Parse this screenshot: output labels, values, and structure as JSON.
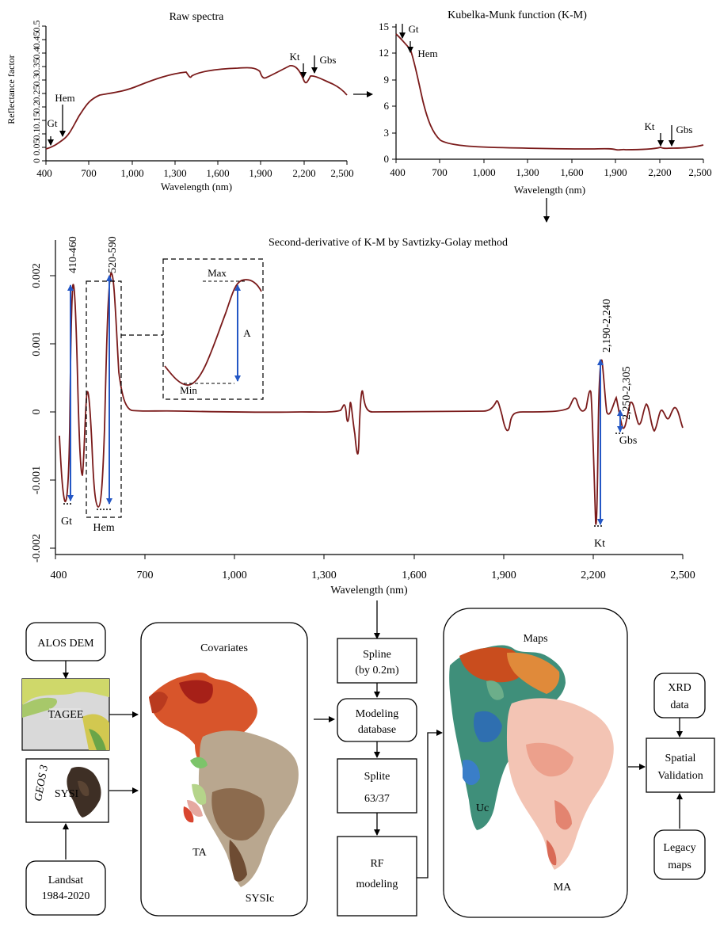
{
  "panel_raw": {
    "title": "Raw spectra",
    "ylabel": "Reflectance factor",
    "xlabel": "Wavelength (nm)",
    "yticks": [
      "0",
      "0.05",
      "0.1",
      "0.15",
      "0.2",
      "0.25",
      "0.3",
      "0.35",
      "0.4",
      "0.45",
      "0.5"
    ],
    "xticks": [
      "400",
      "700",
      "1,000",
      "1,300",
      "1,600",
      "1,900",
      "2,200",
      "2,500"
    ],
    "labels": {
      "gt": "Gt",
      "hem": "Hem",
      "kt": "Kt",
      "gbs": "Gbs"
    }
  },
  "panel_km": {
    "title": "Kubelka-Munk function (K-M)",
    "xlabel": "Wavelength (nm)",
    "yticks": [
      "0",
      "3",
      "6",
      "9",
      "12",
      "15"
    ],
    "xticks": [
      "400",
      "700",
      "1,000",
      "1,300",
      "1,600",
      "1,900",
      "2,200",
      "2,500"
    ],
    "labels": {
      "gt": "Gt",
      "hem": "Hem",
      "kt": "Kt",
      "gbs": "Gbs"
    }
  },
  "panel_deriv": {
    "title": "Second-derivative of K-M by Savtizky-Golay method",
    "xlabel": "Wavelength (nm)",
    "yticks": [
      "-0.002",
      "-0.001",
      "0",
      "0.001",
      "0.002"
    ],
    "xticks": [
      "400",
      "700",
      "1,000",
      "1,300",
      "1,600",
      "1,900",
      "2,200",
      "2,500"
    ],
    "band_labels": [
      "410-460",
      "520-590",
      "2,190-2,240",
      "2,250-2,305"
    ],
    "mineral_labels": {
      "gt": "Gt",
      "hem": "Hem",
      "kt": "Kt",
      "gbs": "Gbs"
    },
    "inset": {
      "max": "Max",
      "min": "Min",
      "a": "A"
    }
  },
  "flow": {
    "alos_dem": "ALOS DEM",
    "tagee": "TAGEE",
    "geos": "GEOS 3",
    "sysi": "SYSI",
    "landsat_line1": "Landsat",
    "landsat_line2": "1984-2020",
    "covariates_title": "Covariates",
    "ta": "TA",
    "sysic": "SYSIc",
    "spline_line1": "Spline",
    "spline_line2": "(by 0.2m)",
    "modeling_line1": "Modeling",
    "modeling_line2": "database",
    "splite_line1": "Splite",
    "splite_line2": "63/37",
    "rf_line1": "RF",
    "rf_line2": "modeling",
    "maps_title": "Maps",
    "uc": "Uc",
    "ma": "MA",
    "xrd_line1": "XRD",
    "xrd_line2": "data",
    "spatial_line1": "Spatial",
    "spatial_line2": "Validation",
    "legacy_line1": "Legacy",
    "legacy_line2": "maps"
  },
  "colors": {
    "curve": "#7a1a1a",
    "marker": "#2457c5",
    "map_warm": "#d8552b",
    "map_pale": "#f3c4b4",
    "map_green": "#3f8f7a"
  }
}
